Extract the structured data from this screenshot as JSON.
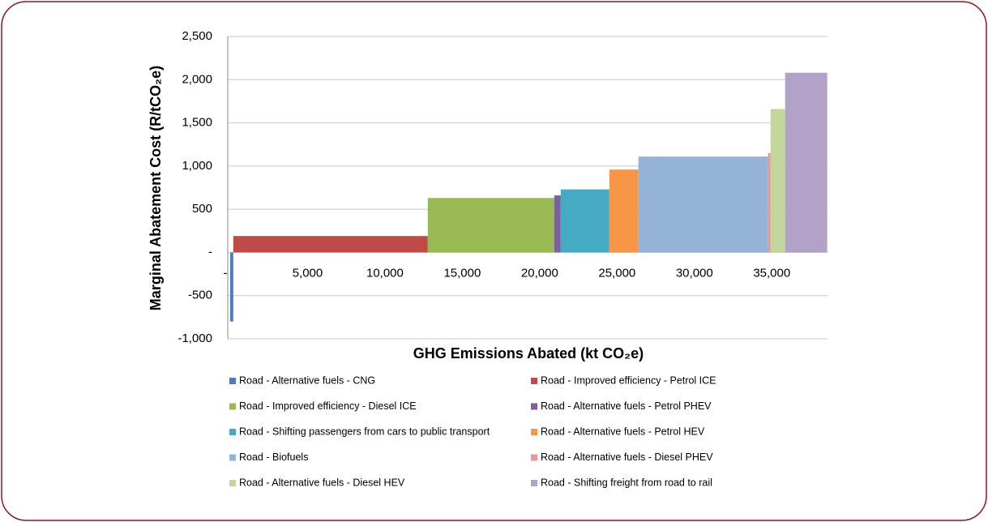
{
  "chart_data": {
    "type": "mac",
    "x_label": "GHG Emissions Abated (kt CO₂e)",
    "y_label": "Marginal Abatement Cost (R/tCO₂e)",
    "xlim": [
      0,
      38600
    ],
    "xticks": [
      {
        "value": 0,
        "label": "-"
      },
      {
        "value": 5000,
        "label": "5,000"
      },
      {
        "value": 10000,
        "label": "10,000"
      },
      {
        "value": 15000,
        "label": "15,000"
      },
      {
        "value": 20000,
        "label": "20,000"
      },
      {
        "value": 25000,
        "label": "25,000"
      },
      {
        "value": 30000,
        "label": "30,000"
      },
      {
        "value": 35000,
        "label": "35,000"
      }
    ],
    "ylim": [
      -1000,
      2500
    ],
    "yticks": [
      {
        "value": -1000,
        "label": "-1,000"
      },
      {
        "value": -500,
        "label": "-500"
      },
      {
        "value": 0,
        "label": "-"
      },
      {
        "value": 500,
        "label": "500"
      },
      {
        "value": 1000,
        "label": "1,000"
      },
      {
        "value": 1500,
        "label": "1,500"
      },
      {
        "value": 2000,
        "label": "2,000"
      },
      {
        "value": 2500,
        "label": "2,500"
      }
    ],
    "grid": true,
    "series": [
      {
        "name": "Road - Alternative fuels - CNG",
        "color": "#4a7ebb",
        "values": [
          -800
        ],
        "widths": [
          200
        ]
      },
      {
        "name": "Road - Improved efficiency - Petrol ICE",
        "color": "#be4b48",
        "values": [
          190
        ],
        "widths": [
          12570
        ]
      },
      {
        "name": "Road - Improved efficiency - Diesel ICE",
        "color": "#98b954",
        "values": [
          630
        ],
        "widths": [
          8170
        ]
      },
      {
        "name": "Road - Alternative fuels - Petrol PHEV",
        "color": "#7d60a0",
        "values": [
          660
        ],
        "widths": [
          420
        ]
      },
      {
        "name": "Road - Shifting passengers from cars to public transport",
        "color": "#46aac5",
        "values": [
          730
        ],
        "widths": [
          3140
        ]
      },
      {
        "name": "Road - Alternative fuels - Petrol HEV",
        "color": "#f79646",
        "values": [
          960
        ],
        "widths": [
          1880
        ]
      },
      {
        "name": "Road - Biofuels",
        "color": "#95b3d7",
        "values": [
          1110
        ],
        "widths": [
          8380
        ]
      },
      {
        "name": "Road - Alternative fuels - Diesel PHEV",
        "color": "#e6989a",
        "values": [
          1150
        ],
        "widths": [
          160
        ]
      },
      {
        "name": "Road - Alternative fuels - Diesel HEV",
        "color": "#c3d69b",
        "values": [
          1660
        ],
        "widths": [
          940
        ]
      },
      {
        "name": "Road - Shifting freight from road to rail",
        "color": "#b3a2c7",
        "values": [
          2080
        ],
        "widths": [
          2720
        ]
      }
    ]
  }
}
